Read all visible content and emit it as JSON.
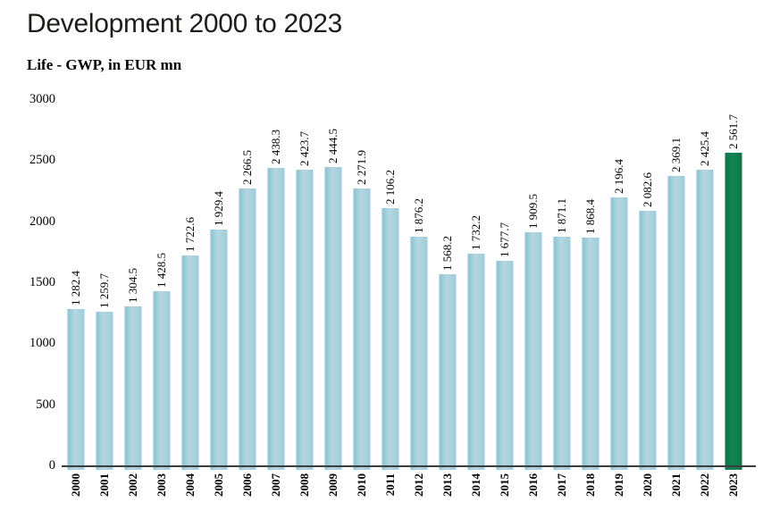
{
  "title": "Development 2000 to 2023",
  "subtitle": "Life - GWP, in EUR mn",
  "chart_data": {
    "type": "bar",
    "title": "Development 2000 to 2023",
    "subtitle": "Life - GWP, in EUR mn",
    "xlabel": "",
    "ylabel": "Life - GWP, in EUR mn",
    "categories": [
      "2000",
      "2001",
      "2002",
      "2003",
      "2004",
      "2005",
      "2006",
      "2007",
      "2008",
      "2009",
      "2010",
      "2011",
      "2012",
      "2013",
      "2014",
      "2015",
      "2016",
      "2017",
      "2018",
      "2019",
      "2020",
      "2021",
      "2022",
      "2023"
    ],
    "values": [
      1282.4,
      1259.7,
      1304.5,
      1428.5,
      1722.6,
      1929.4,
      2266.5,
      2438.3,
      2423.7,
      2444.5,
      2271.9,
      2106.2,
      1876.2,
      1568.2,
      1732.2,
      1677.7,
      1909.5,
      1871.1,
      1868.4,
      2196.4,
      2082.6,
      2369.1,
      2425.4,
      2561.7
    ],
    "value_labels": [
      "1 282.4",
      "1 259.7",
      "1 304.5",
      "1 428.5",
      "1 722.6",
      "1 929.4",
      "2 266.5",
      "2 438.3",
      "2 423.7",
      "2 444.5",
      "2 271.9",
      "2 106.2",
      "1 876.2",
      "1 568.2",
      "1 732.2",
      "1 677.7",
      "1 909.5",
      "1 871.1",
      "1 868.4",
      "2 196.4",
      "2 082.6",
      "2 369.1",
      "2 425.4",
      "2 561.7"
    ],
    "ylim": [
      0,
      3000
    ],
    "yticks": [
      0,
      500,
      1000,
      1500,
      2000,
      2500,
      3000
    ],
    "grid": false,
    "legend": false,
    "bar_color": "#9ccbd9",
    "highlight_color": "#0d7f4d",
    "highlight_index": 23,
    "axis_color": "#3d3d3d"
  }
}
